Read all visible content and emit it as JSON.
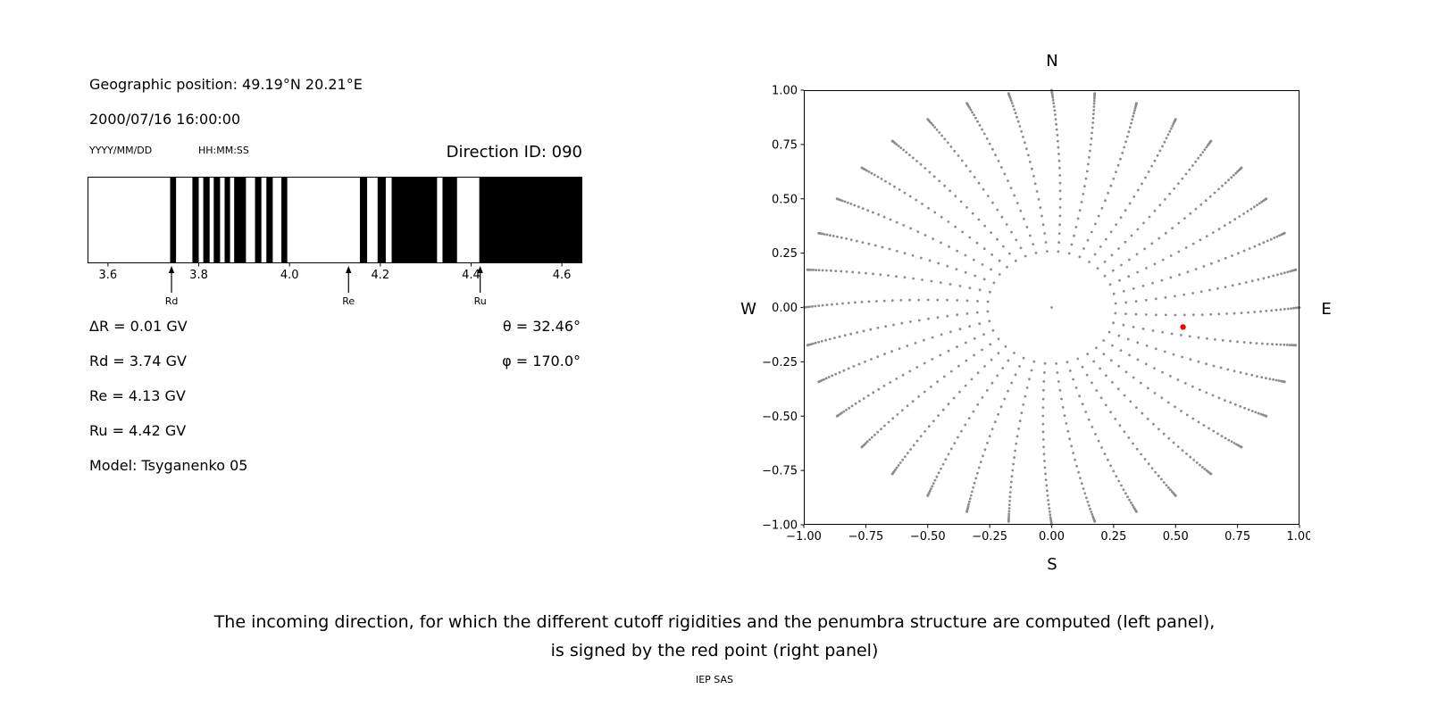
{
  "left_panel": {
    "geo_position": "Geographic position: 49.19°N 20.21°E",
    "datetime": "2000/07/16 16:00:00",
    "date_format_label": "YYYY/MM/DD",
    "time_format_label": "HH:MM:SS",
    "direction_id_label": "Direction ID: 090",
    "params": {
      "delta_r": "ΔR = 0.01 GV",
      "rd": "Rd = 3.74 GV",
      "re": "Re = 4.13 GV",
      "ru": "Ru = 4.42 GV",
      "model": "Model: Tsyganenko 05",
      "theta": "θ = 32.46°",
      "phi": "φ = 170.0°"
    }
  },
  "caption": {
    "line1": "The incoming direction, for which the different cutoff rigidities and the penumbra structure are computed (left panel),",
    "line2": "is signed by the red point (right panel)",
    "credit": "IEP SAS"
  },
  "chart_data": [
    {
      "type": "bar",
      "name": "penumbra-structure",
      "description": "Cutoff rigidity penumbra: black bands = allowed rigidity intervals (GV)",
      "x_range": [
        3.555,
        4.645
      ],
      "x_ticks": [
        3.6,
        3.8,
        4.0,
        4.2,
        4.4,
        4.6
      ],
      "x_tick_labels": [
        "3.6",
        "3.8",
        "4.0",
        "4.2",
        "4.4",
        "4.6"
      ],
      "band_color": "#000000",
      "background": "#ffffff",
      "allowed_bands": [
        [
          3.737,
          3.75
        ],
        [
          3.786,
          3.8
        ],
        [
          3.81,
          3.824
        ],
        [
          3.833,
          3.847
        ],
        [
          3.857,
          3.869
        ],
        [
          3.878,
          3.904
        ],
        [
          3.924,
          3.938
        ],
        [
          3.949,
          3.963
        ],
        [
          3.982,
          3.995
        ],
        [
          4.155,
          4.171
        ],
        [
          4.194,
          4.212
        ],
        [
          4.225,
          4.325
        ],
        [
          4.337,
          4.369
        ],
        [
          4.418,
          4.645
        ]
      ],
      "markers": [
        {
          "label": "Rd",
          "value": 3.74
        },
        {
          "label": "Re",
          "value": 4.13
        },
        {
          "label": "Ru",
          "value": 4.42
        }
      ]
    },
    {
      "type": "scatter",
      "name": "incoming-directions",
      "description": "Grid of incoming directions (gray dots, radial spokes by azimuth, radius = sin(zenith)); selected direction shown as red point",
      "xlim": [
        -1,
        1
      ],
      "ylim": [
        -1,
        1
      ],
      "x_ticks": [
        -1.0,
        -0.75,
        -0.5,
        -0.25,
        0.0,
        0.25,
        0.5,
        0.75,
        1.0
      ],
      "x_tick_labels": [
        "−1.00",
        "−0.75",
        "−0.50",
        "−0.25",
        "0.00",
        "0.25",
        "0.50",
        "0.75",
        "1.00"
      ],
      "y_ticks": [
        1.0,
        0.75,
        0.5,
        0.25,
        0.0,
        -0.25,
        -0.5,
        -0.75,
        -1.0
      ],
      "y_tick_labels": [
        "1.00",
        "0.75",
        "0.50",
        "0.25",
        "0.00",
        "−0.25",
        "−0.50",
        "−0.75",
        "−1.00"
      ],
      "compass": {
        "top": "N",
        "bottom": "S",
        "left": "W",
        "right": "E"
      },
      "grid_points": {
        "azimuth_count": 36,
        "zenith_start_deg": 15,
        "zenith_end_deg": 90,
        "zenith_step_deg": 2.5,
        "bend_deg": 8,
        "color": "#8c8c8c",
        "dot_radius": 1.4,
        "center_dot": true
      },
      "red_point": {
        "x": 0.53,
        "y": -0.09,
        "color": "#ff0000"
      }
    }
  ]
}
